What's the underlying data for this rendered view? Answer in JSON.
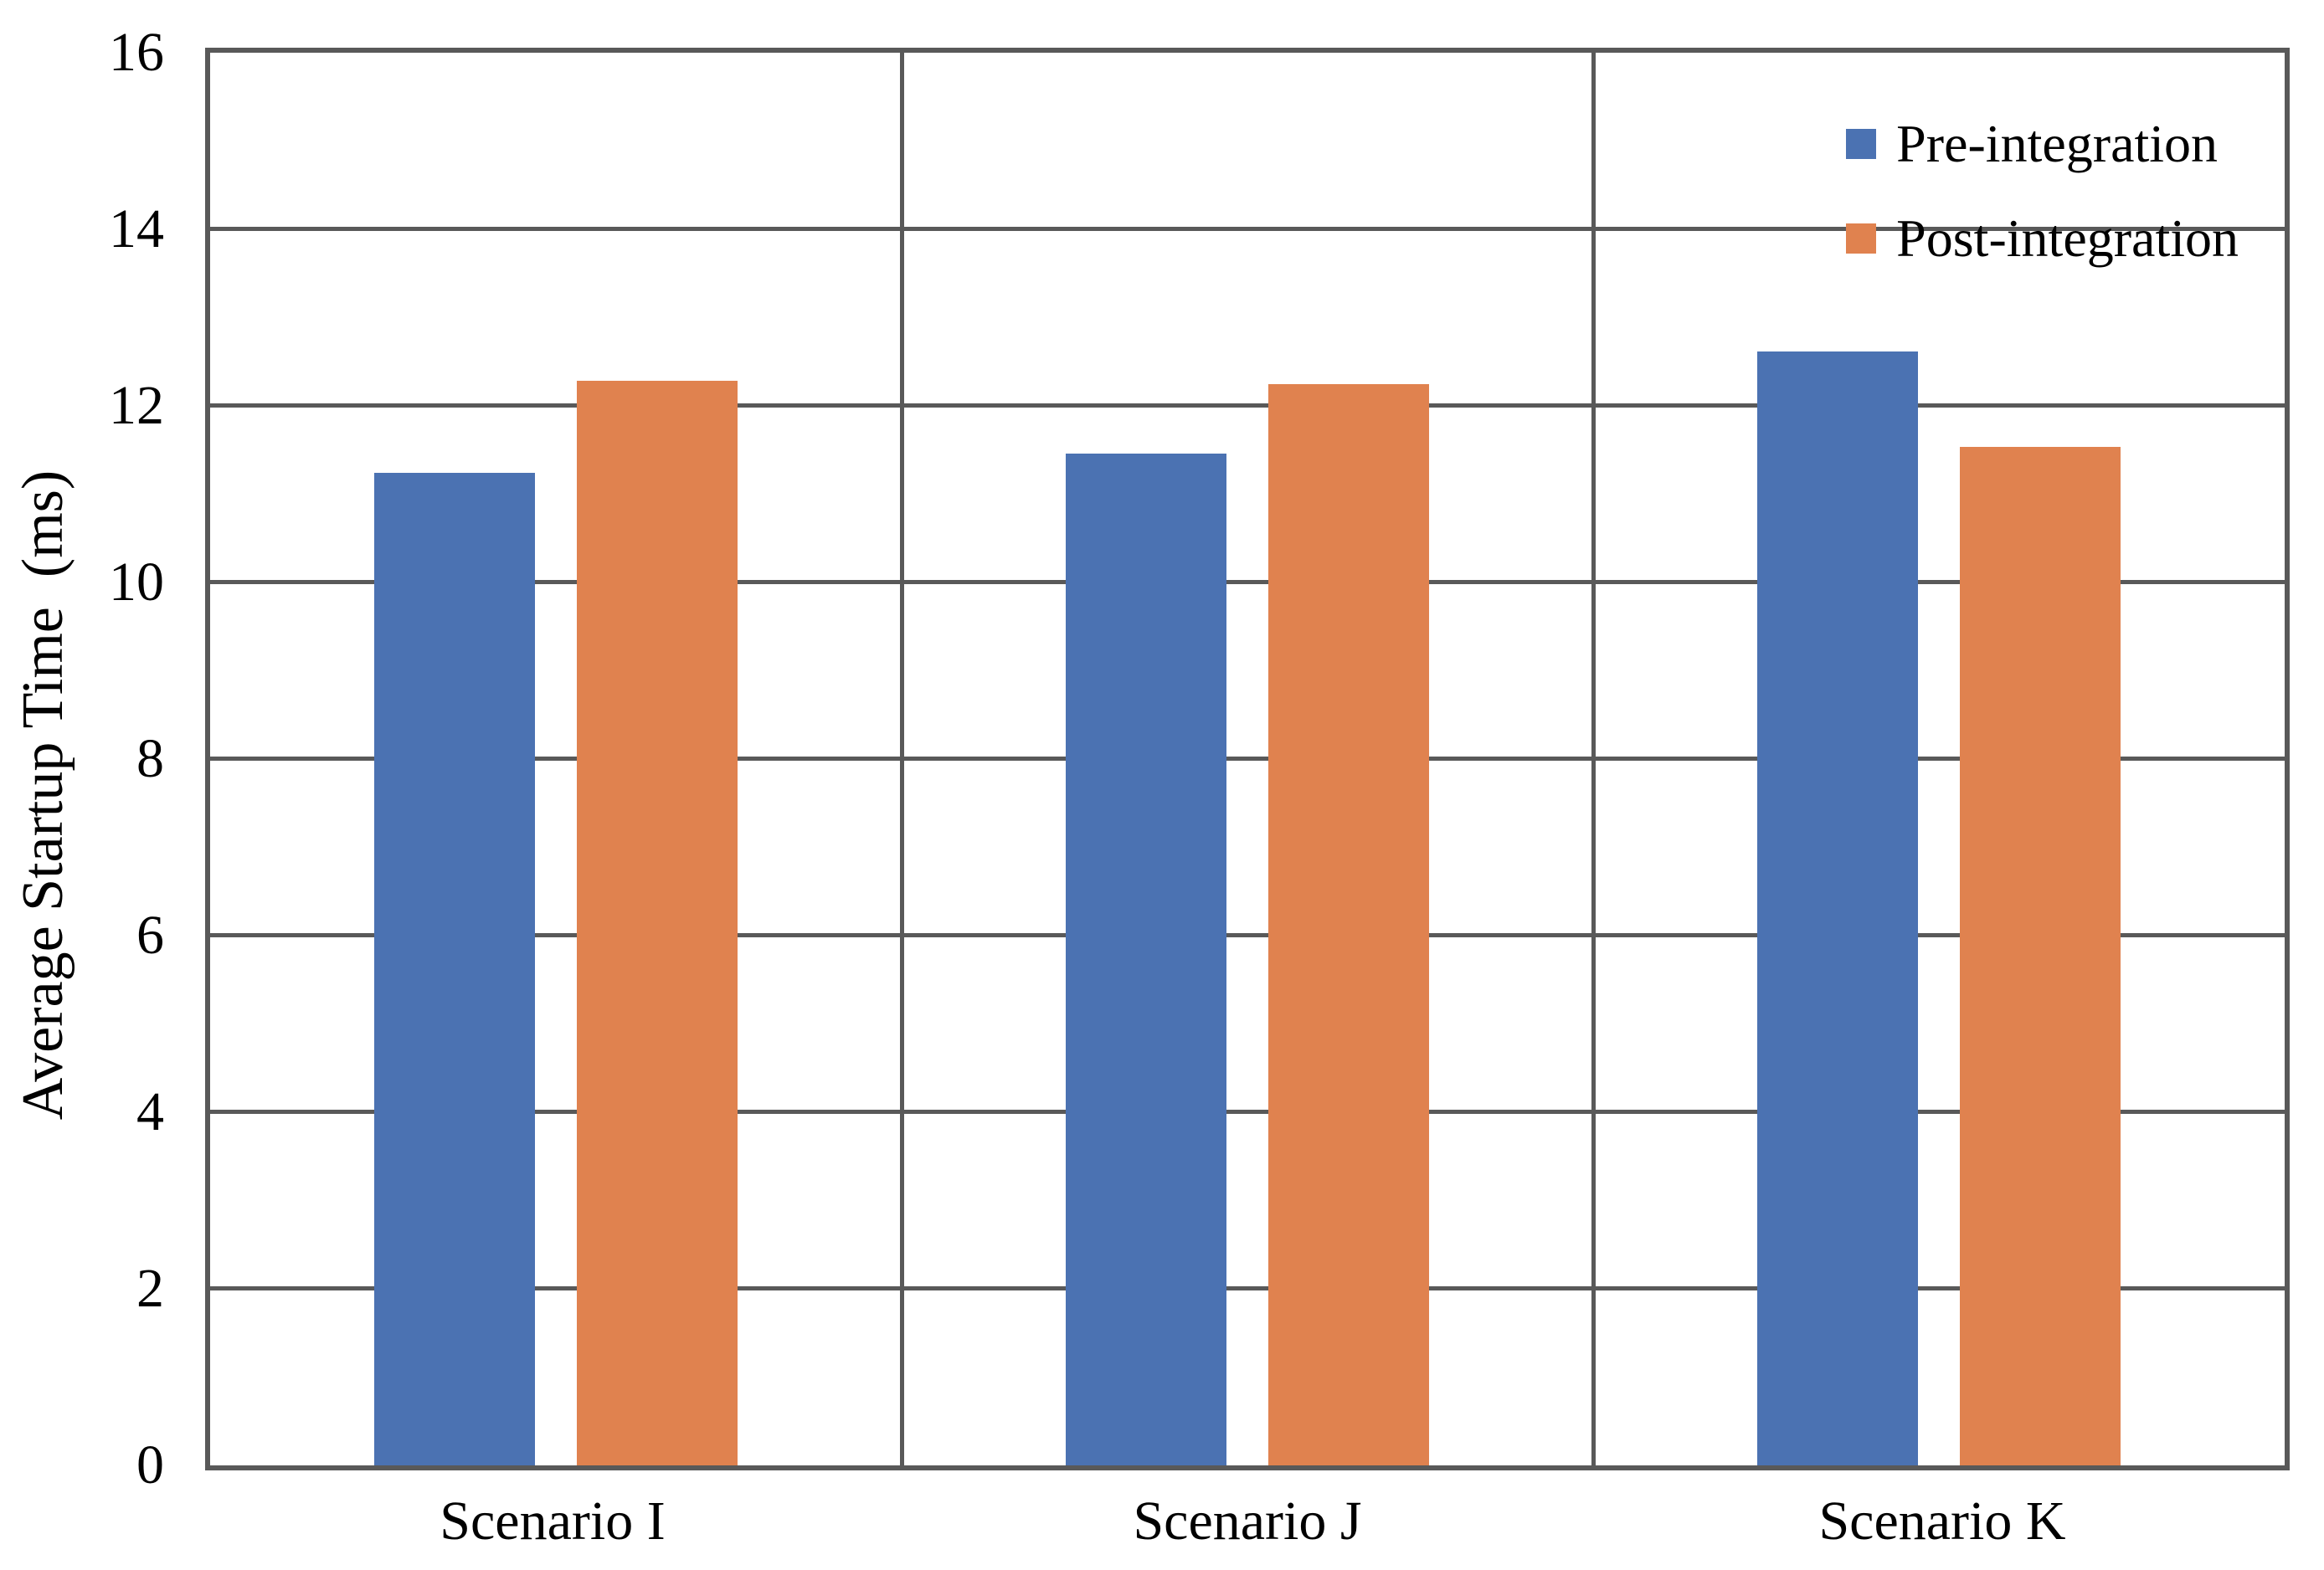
{
  "chart_data": {
    "type": "bar",
    "title": "",
    "categories": [
      "Scenario I",
      "Scenario J",
      "Scenario K"
    ],
    "series": [
      {
        "name": "Pre-integration",
        "color": "#4B72B2",
        "values": [
          11.24,
          11.46,
          12.62
        ]
      },
      {
        "name": "Post-integration",
        "color": "#E0824F",
        "values": [
          12.28,
          12.25,
          11.54
        ]
      }
    ],
    "xlabel": "",
    "ylabel": "Average Startup Time  (ms)",
    "ylim": [
      0,
      16
    ],
    "yticks": [
      0,
      2,
      4,
      6,
      8,
      10,
      12,
      14,
      16
    ],
    "grid": "horizontal gridlines at every ytick; vertical separators between categories",
    "legend_position": "top-right inside plot",
    "colors": {
      "gridline": "#595959",
      "border": "#595959",
      "background": "#FFFFFF",
      "text": "#000000"
    }
  }
}
